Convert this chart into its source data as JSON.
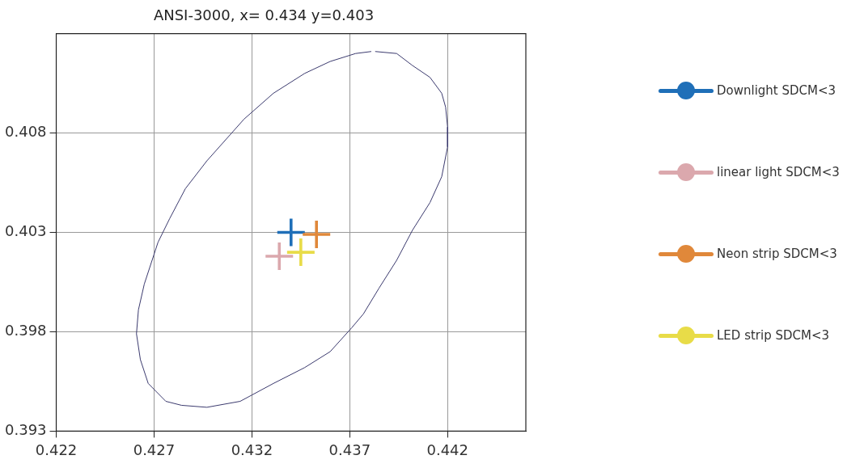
{
  "chart_data": {
    "type": "scatter",
    "title": "ANSI-3000, x= 0.434 y=0.403",
    "xlim": [
      0.422,
      0.446
    ],
    "xticks": [
      0.422,
      0.427,
      0.432,
      0.437,
      0.442
    ],
    "ylim": [
      0.393,
      0.413
    ],
    "yticks": [
      0.393,
      0.398,
      0.403,
      0.408
    ],
    "grid": true,
    "legend": "right",
    "marker": "cross",
    "series": [
      {
        "type": "line",
        "marker": "none",
        "color": "#3b3a6e",
        "x": [
          0.4383,
          0.4394,
          0.4402,
          0.4411,
          0.4417,
          0.4419,
          0.442,
          0.442,
          0.4417,
          0.4411,
          0.4402,
          0.4394,
          0.4385,
          0.4377,
          0.4371,
          0.436,
          0.4347,
          0.4331,
          0.4314,
          0.4297,
          0.4284,
          0.4276,
          0.4267,
          0.4263,
          0.4261,
          0.4262,
          0.4265,
          0.4272,
          0.4278,
          0.4286,
          0.4297,
          0.4316,
          0.4331,
          0.4347,
          0.436,
          0.4373,
          0.4381
        ],
        "values": [
          0.4121,
          0.412,
          0.4114,
          0.4108,
          0.41,
          0.4093,
          0.4083,
          0.4073,
          0.4058,
          0.4045,
          0.4031,
          0.4016,
          0.4002,
          0.3989,
          0.3982,
          0.397,
          0.3962,
          0.3954,
          0.3945,
          0.3942,
          0.3943,
          0.3945,
          0.3954,
          0.3966,
          0.3979,
          0.3991,
          0.4004,
          0.4025,
          0.4037,
          0.4052,
          0.4066,
          0.4087,
          0.41,
          0.411,
          0.4116,
          0.412,
          0.4121
        ]
      },
      {
        "name": "Downlight SDCM<3",
        "color": "#1f6fb8",
        "x": [
          0.434
        ],
        "values": [
          0.403
        ]
      },
      {
        "name": "linear light SDCM<3",
        "color": "#dba8ad",
        "x": [
          0.4334
        ],
        "values": [
          0.4018
        ]
      },
      {
        "name": "Neon strip SDCM<3",
        "color": "#e0883a",
        "x": [
          0.4353
        ],
        "values": [
          0.4029
        ]
      },
      {
        "name": "LED strip SDCM<3",
        "color": "#e8dc48",
        "x": [
          0.4345
        ],
        "values": [
          0.402
        ]
      }
    ]
  }
}
